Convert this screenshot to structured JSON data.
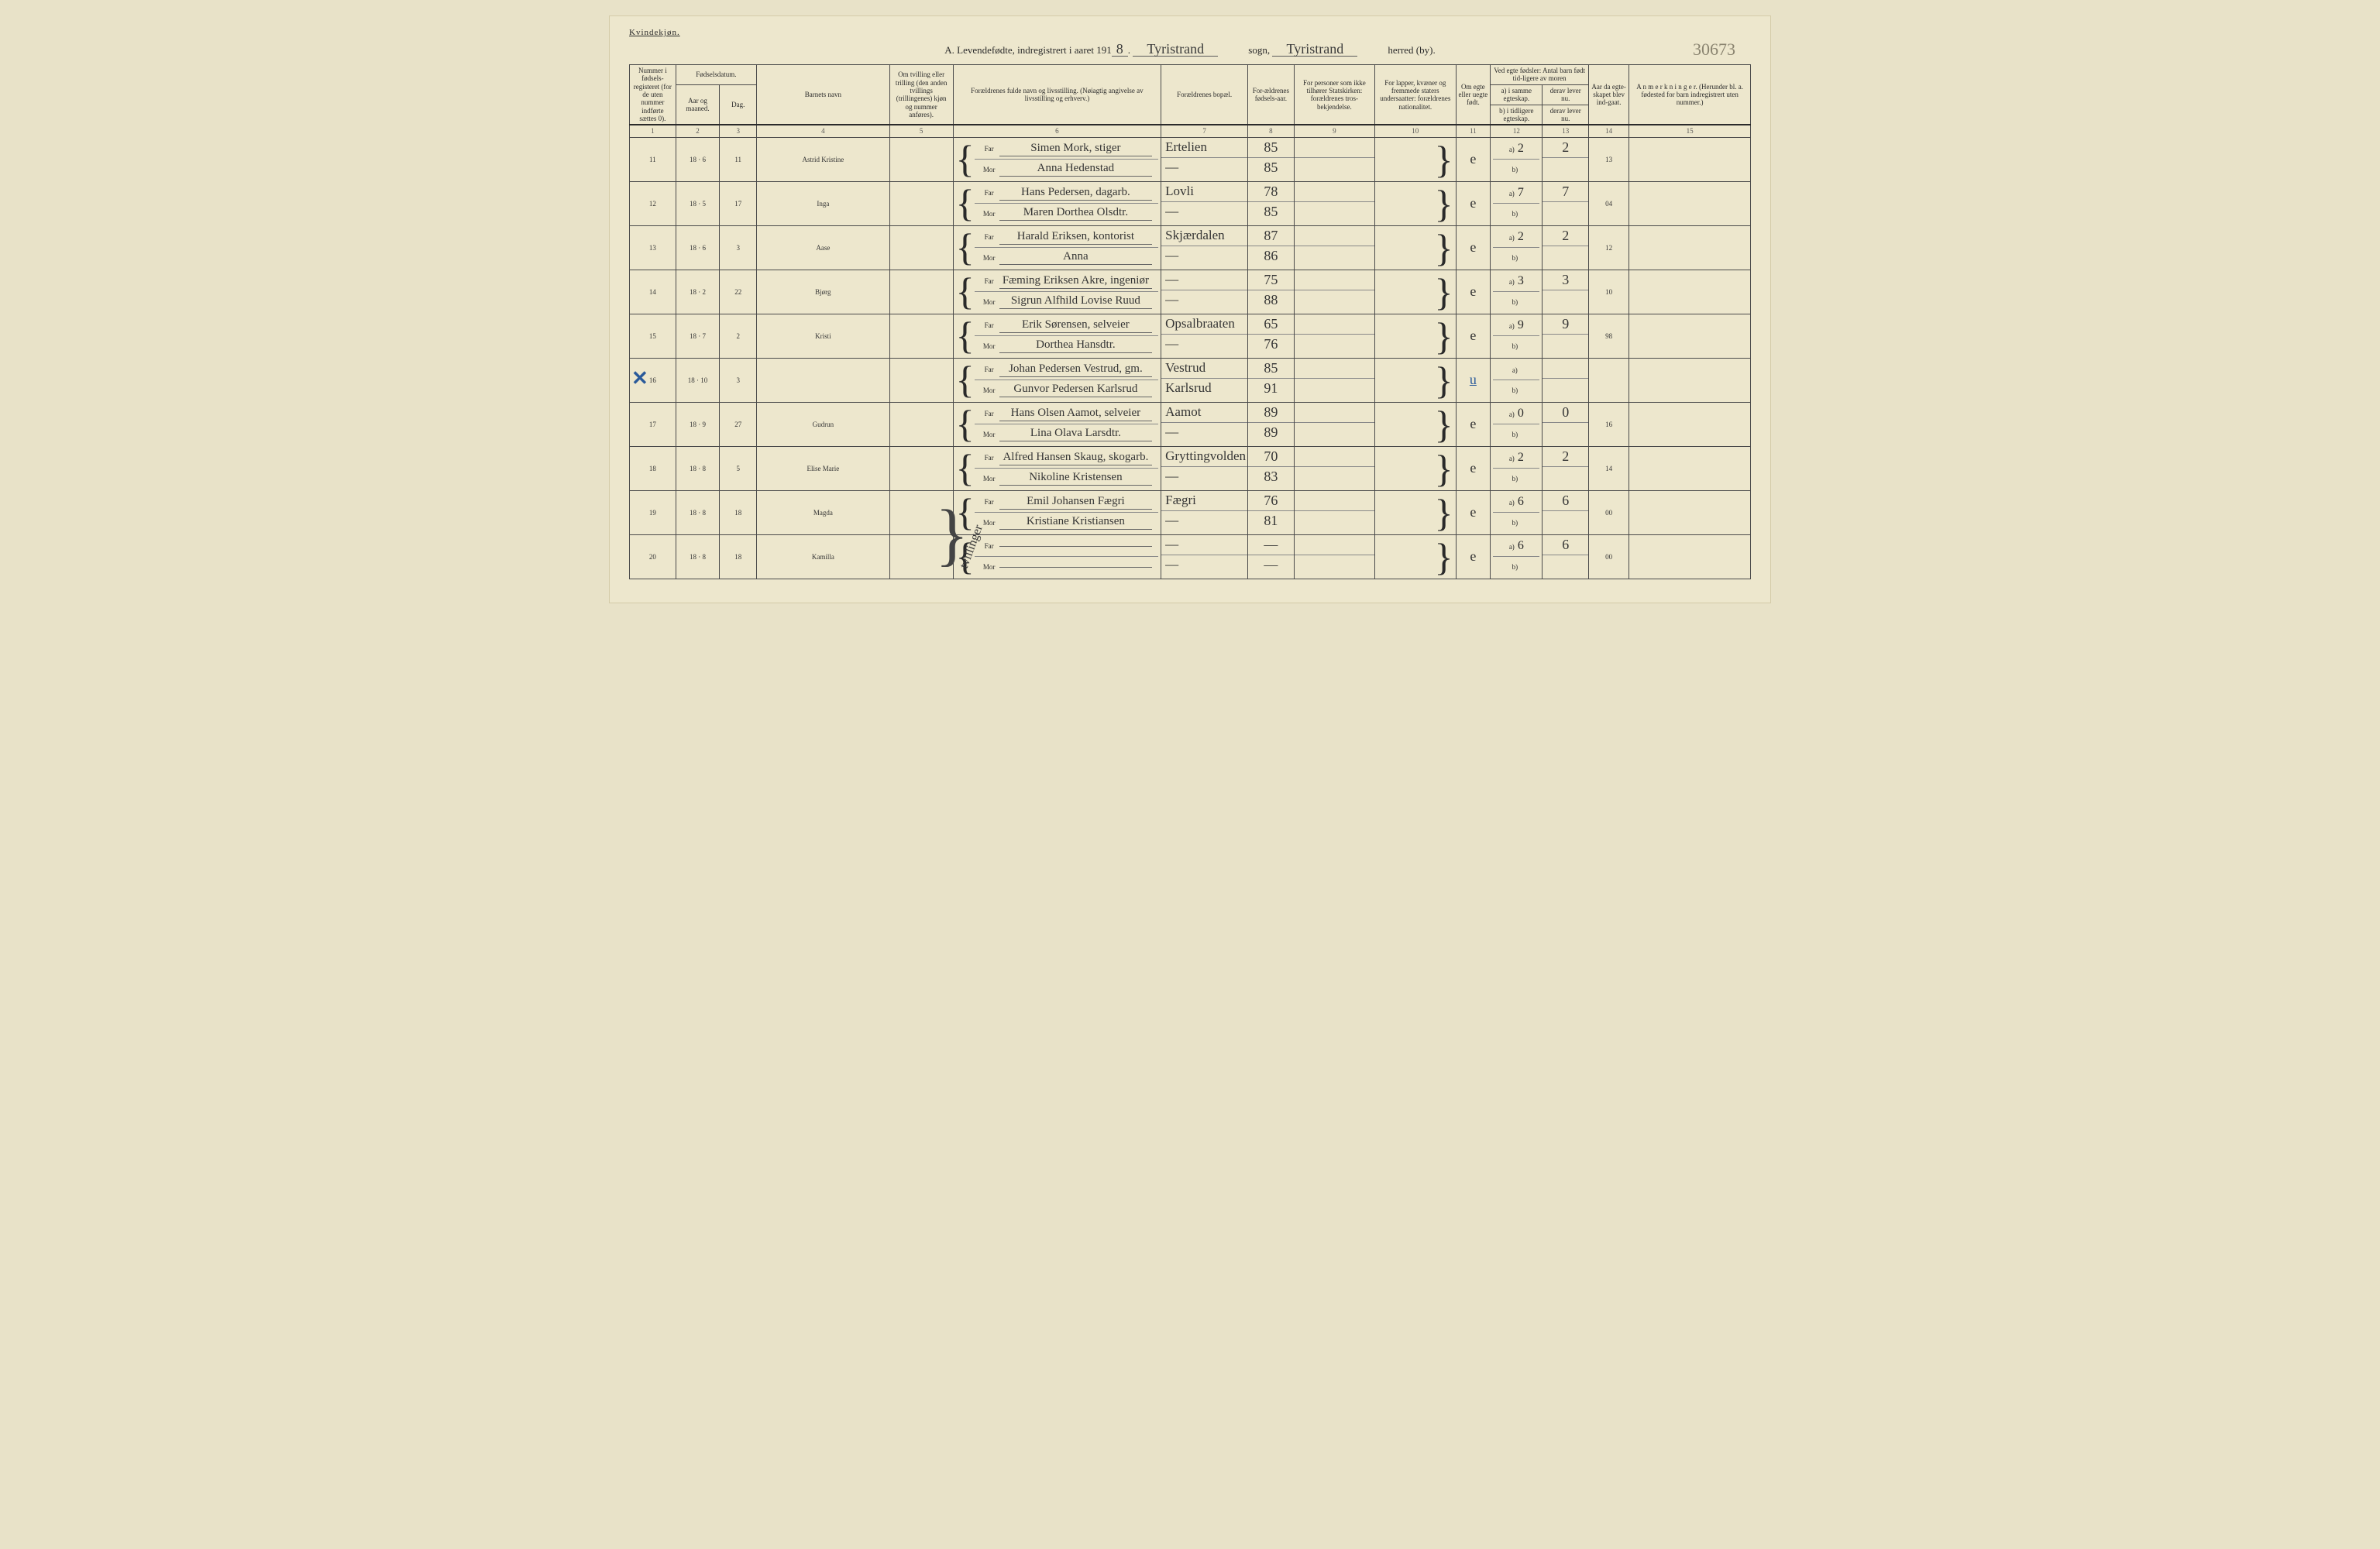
{
  "page": {
    "background_color": "#ede7cd",
    "border_color": "#4a4a4a",
    "handwriting_color": "#353535",
    "printed_color": "#2a2a2a"
  },
  "heading": {
    "gender": "Kvindekjøn.",
    "title_a": "A. Levendefødte, indregistrert i aaret 191",
    "year_suffix": "8",
    "sep": ". ",
    "sogn_hand": "Tyristrand",
    "sogn_label": "sogn,",
    "herred_hand": "Tyristrand",
    "herred_label": "herred (by).",
    "top_number": "30673"
  },
  "columns": {
    "c1": "Nummer i fødsels-registeret (for de uten nummer indførte sættes 0).",
    "c2_3_group": "Fødselsdatum.",
    "c2": "Aar og maaned.",
    "c3": "Dag.",
    "c4": "Barnets navn",
    "c5": "Om tvilling eller trilling (den anden tvillings (trillingenes) kjøn og nummer anføres).",
    "c6": "Forældrenes fulde navn og livsstilling. (Nøiagtig angivelse av livsstilling og erhverv.)",
    "c6_far": "Far",
    "c6_mor": "Mor",
    "c7": "Forældrenes bopæl.",
    "c8": "For-ældrenes fødsels-aar.",
    "c9": "For personer som ikke tilhører Statskirken: forældrenes tros-bekjendelse.",
    "c10": "For lapper, kvæner og fremmede staters undersaatter: forældrenes nationalitet.",
    "c11": "Om egte eller uegte født.",
    "c12_13_group": "Ved egte fødsler: Antal barn født tid-ligere av moren",
    "c12a": "a) i samme egteskap.",
    "c12b": "b) i tidligere egteskap.",
    "c13a": "derav lever nu.",
    "c13b": "derav lever nu.",
    "c14": "Aar da egte-skapet blev ind-gaat.",
    "c15": "A n m e r k n i n g e r. (Herunder bl. a. fødested for barn indregistrert uten nummer.)",
    "nums": [
      "1",
      "2",
      "3",
      "4",
      "5",
      "6",
      "7",
      "8",
      "9",
      "10",
      "11",
      "12",
      "13",
      "14",
      "15"
    ]
  },
  "twins_label": "tvillinger",
  "rows": [
    {
      "no": "11",
      "ym": "18 · 6",
      "day": "11",
      "name": "Astrid Kristine",
      "twin": "",
      "far": "Simen Mork, stiger",
      "mor": "Anna Hedenstad",
      "bopael_far": "Ertelien",
      "bopael_mor": "—",
      "yb_far": "85",
      "yb_mor": "85",
      "egte": "e",
      "a": "2",
      "a_lev": "2",
      "b": "",
      "b_lev": "",
      "aar": "13",
      "anm": ""
    },
    {
      "no": "12",
      "ym": "18 · 5",
      "day": "17",
      "name": "Inga",
      "twin": "",
      "far": "Hans Pedersen, dagarb.",
      "mor": "Maren Dorthea Olsdtr.",
      "bopael_far": "Lovli",
      "bopael_mor": "—",
      "yb_far": "78",
      "yb_mor": "85",
      "egte": "e",
      "a": "7",
      "a_lev": "7",
      "b": "",
      "b_lev": "",
      "aar": "04",
      "anm": ""
    },
    {
      "no": "13",
      "ym": "18 · 6",
      "day": "3",
      "name": "Aase",
      "twin": "",
      "far": "Harald Eriksen, kontorist",
      "mor": "Anna",
      "bopael_far": "Skjærdalen",
      "bopael_mor": "—",
      "yb_far": "87",
      "yb_mor": "86",
      "egte": "e",
      "a": "2",
      "a_lev": "2",
      "b": "",
      "b_lev": "",
      "aar": "12",
      "anm": ""
    },
    {
      "no": "14",
      "ym": "18 · 2",
      "day": "22",
      "name": "Bjørg",
      "twin": "",
      "far": "Fæming Eriksen Akre, ingeniør",
      "mor": "Sigrun Alfhild Lovise Ruud",
      "bopael_far": "—",
      "bopael_mor": "—",
      "yb_far": "75",
      "yb_mor": "88",
      "egte": "e",
      "a": "3",
      "a_lev": "3",
      "b": "",
      "b_lev": "",
      "aar": "10",
      "anm": ""
    },
    {
      "no": "15",
      "ym": "18 · 7",
      "day": "2",
      "name": "Kristi",
      "twin": "",
      "far": "Erik Sørensen, selveier",
      "mor": "Dorthea Hansdtr.",
      "bopael_far": "Opsalbraaten",
      "bopael_mor": "—",
      "yb_far": "65",
      "yb_mor": "76",
      "egte": "e",
      "a": "9",
      "a_lev": "9",
      "b": "",
      "b_lev": "",
      "aar": "98",
      "anm": ""
    },
    {
      "no": "16",
      "ym": "18 · 10",
      "day": "3",
      "name": "",
      "twin": "",
      "far": "Johan Pedersen Vestrud, gm.",
      "mor": "Gunvor Pedersen Karlsrud",
      "bopael_far": "Vestrud",
      "bopael_mor": "Karlsrud",
      "yb_far": "85",
      "yb_mor": "91",
      "egte": "u",
      "a": "",
      "a_lev": "",
      "b": "",
      "b_lev": "",
      "aar": "",
      "anm": "",
      "crossed": true,
      "ue_underline": true
    },
    {
      "no": "17",
      "ym": "18 · 9",
      "day": "27",
      "name": "Gudrun",
      "twin": "",
      "far": "Hans Olsen Aamot, selveier",
      "mor": "Lina Olava Larsdtr.",
      "bopael_far": "Aamot",
      "bopael_mor": "—",
      "yb_far": "89",
      "yb_mor": "89",
      "egte": "e",
      "a": "0",
      "a_lev": "0",
      "b": "",
      "b_lev": "",
      "aar": "16",
      "anm": ""
    },
    {
      "no": "18",
      "ym": "18 · 8",
      "day": "5",
      "name": "Elise Marie",
      "twin": "",
      "far": "Alfred Hansen Skaug, skogarb.",
      "mor": "Nikoline Kristensen",
      "bopael_far": "Gryttingvolden",
      "bopael_mor": "—",
      "yb_far": "70",
      "yb_mor": "83",
      "egte": "e",
      "a": "2",
      "a_lev": "2",
      "b": "",
      "b_lev": "",
      "aar": "14",
      "anm": ""
    },
    {
      "no": "19",
      "ym": "18 · 8",
      "day": "18",
      "name": "Magda",
      "twin": "",
      "far": "Emil Johansen Fægri",
      "mor": "Kristiane Kristiansen",
      "bopael_far": "Fægri",
      "bopael_mor": "—",
      "yb_far": "76",
      "yb_mor": "81",
      "egte": "e",
      "a": "6",
      "a_lev": "6",
      "b": "",
      "b_lev": "",
      "aar": "00",
      "anm": ""
    },
    {
      "no": "20",
      "ym": "18 · 8",
      "day": "18",
      "name": "Kamilla",
      "twin": "",
      "far": "",
      "mor": "",
      "bopael_far": "—",
      "bopael_mor": "—",
      "yb_far": "—",
      "yb_mor": "—",
      "egte": "e",
      "a": "6",
      "a_lev": "6",
      "b": "",
      "b_lev": "",
      "aar": "00",
      "anm": ""
    }
  ]
}
